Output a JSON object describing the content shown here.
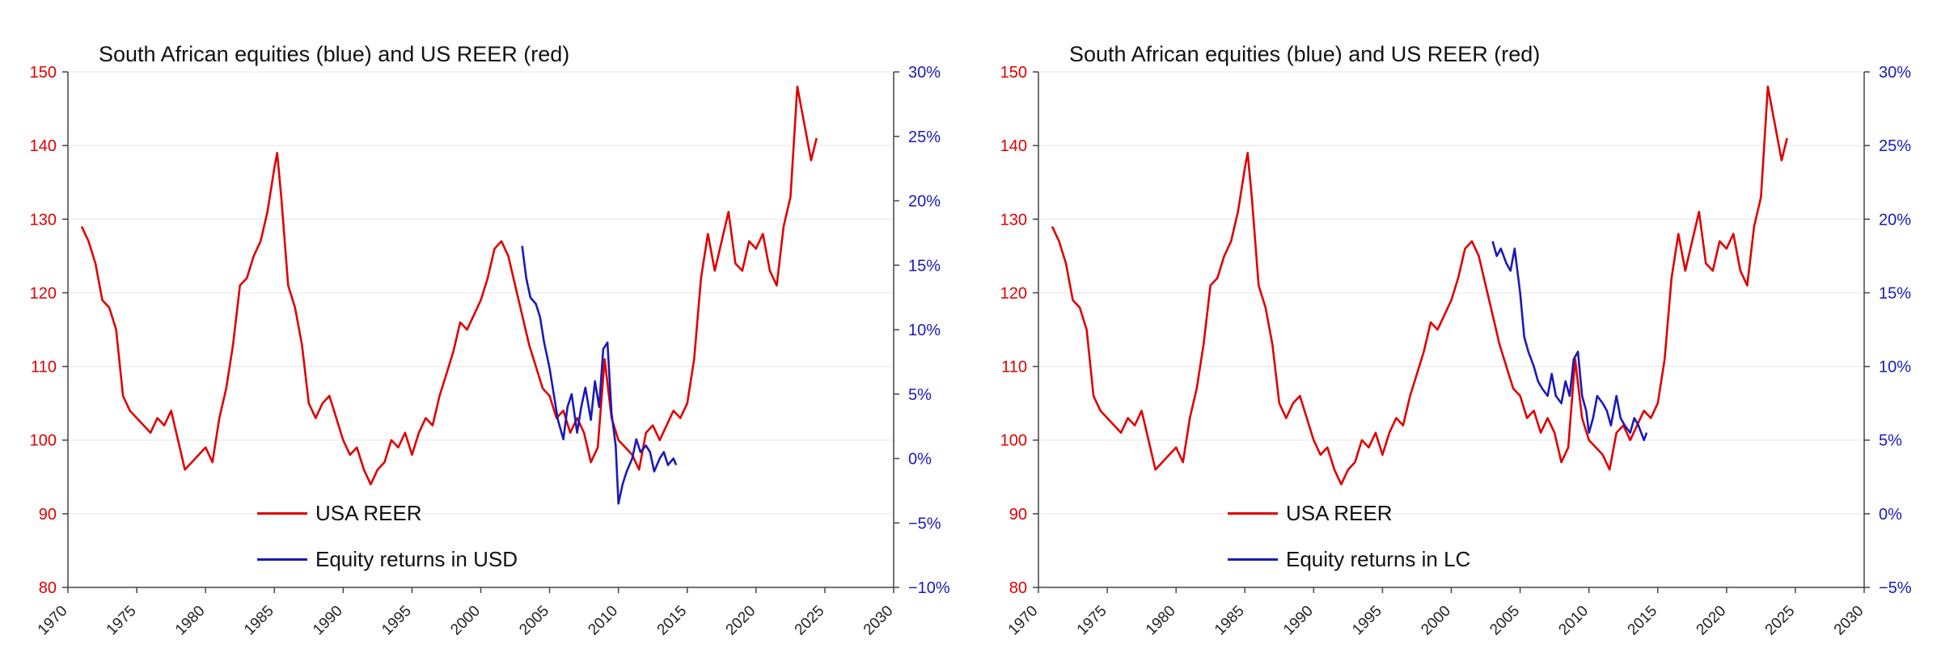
{
  "colors": {
    "reer": "#e00000",
    "equity": "#1a1ab8",
    "axis": "#444444",
    "grid": "#e6e6e6"
  },
  "chart_data": [
    {
      "type": "line",
      "title": "South African equities (blue) and US REER (red)",
      "xlim": [
        1970,
        2030
      ],
      "x_ticks": [
        "1970",
        "1975",
        "1980",
        "1985",
        "1990",
        "1995",
        "2000",
        "2005",
        "2010",
        "2015",
        "2020",
        "2025",
        "2030"
      ],
      "y_left": {
        "range": [
          80,
          150
        ],
        "ticks": [
          "80",
          "90",
          "100",
          "110",
          "120",
          "130",
          "140",
          "150"
        ]
      },
      "y_right": {
        "range": [
          -10,
          30
        ],
        "ticks": [
          "−10%",
          "−5%",
          "0%",
          "5%",
          "10%",
          "15%",
          "20%",
          "25%",
          "30%"
        ]
      },
      "grid": true,
      "legend_placement": "bottom-center",
      "series": [
        {
          "name": "USA REER",
          "axis": "left",
          "x": [
            1971.0,
            1971.5,
            1972.0,
            1972.5,
            1973.0,
            1973.5,
            1974.0,
            1974.5,
            1975.0,
            1975.5,
            1976.0,
            1976.5,
            1977.0,
            1977.5,
            1978.0,
            1978.5,
            1979.0,
            1979.5,
            1980.0,
            1980.5,
            1981.0,
            1981.5,
            1982.0,
            1982.5,
            1983.0,
            1983.5,
            1984.0,
            1984.5,
            1985.0,
            1985.2,
            1985.5,
            1986.0,
            1986.5,
            1987.0,
            1987.5,
            1988.0,
            1988.5,
            1989.0,
            1989.5,
            1990.0,
            1990.5,
            1991.0,
            1991.5,
            1992.0,
            1992.5,
            1993.0,
            1993.5,
            1994.0,
            1994.5,
            1995.0,
            1995.5,
            1996.0,
            1996.5,
            1997.0,
            1997.5,
            1998.0,
            1998.5,
            1999.0,
            1999.5,
            2000.0,
            2000.5,
            2001.0,
            2001.5,
            2002.0,
            2002.5,
            2003.0,
            2003.5,
            2004.0,
            2004.5,
            2005.0,
            2005.5,
            2006.0,
            2006.5,
            2007.0,
            2007.5,
            2008.0,
            2008.5,
            2009.0,
            2009.5,
            2010.0,
            2010.5,
            2011.0,
            2011.5,
            2012.0,
            2012.5,
            2013.0,
            2013.5,
            2014.0,
            2014.5,
            2015.0,
            2015.5,
            2016.0,
            2016.5,
            2017.0,
            2017.5,
            2018.0,
            2018.5,
            2019.0,
            2019.5,
            2020.0,
            2020.5,
            2021.0,
            2021.5,
            2022.0,
            2022.5,
            2022.8,
            2023.0,
            2023.5,
            2024.0,
            2024.4
          ],
          "y": [
            129,
            127,
            124,
            119,
            118,
            115,
            106,
            104,
            103,
            102,
            101,
            103,
            102,
            104,
            100,
            96,
            97,
            98,
            99,
            97,
            103,
            107,
            113,
            121,
            122,
            125,
            127,
            131,
            137,
            139,
            133,
            121,
            118,
            113,
            105,
            103,
            105,
            106,
            103,
            100,
            98,
            99,
            96,
            94,
            96,
            97,
            100,
            99,
            101,
            98,
            101,
            103,
            102,
            106,
            109,
            112,
            116,
            115,
            117,
            119,
            122,
            126,
            127,
            125,
            121,
            117,
            113,
            110,
            107,
            106,
            103,
            104,
            101,
            103,
            101,
            97,
            99,
            111,
            103,
            100,
            99,
            98,
            96,
            101,
            102,
            100,
            102,
            104,
            103,
            105,
            111,
            122,
            128,
            123,
            127,
            131,
            124,
            123,
            127,
            126,
            128,
            123,
            121,
            129,
            133,
            142,
            148,
            143,
            138,
            141
          ]
        }
      ]
    },
    {
      "type": "line",
      "title": "South African equities (blue) and US REER (red)",
      "xlim": [
        1970,
        2030
      ],
      "x_ticks": [
        "1970",
        "1975",
        "1980",
        "1985",
        "1990",
        "1995",
        "2000",
        "2005",
        "2010",
        "2015",
        "2020",
        "2025",
        "2030"
      ],
      "y_left": {
        "range": [
          80,
          150
        ],
        "ticks": [
          "80",
          "90",
          "100",
          "110",
          "120",
          "130",
          "140",
          "150"
        ]
      },
      "y_right": {
        "range": [
          -5,
          30
        ],
        "ticks": [
          "−5%",
          "0%",
          "5%",
          "10%",
          "15%",
          "20%",
          "25%",
          "30%"
        ]
      },
      "grid": true,
      "legend_placement": "bottom-center",
      "series": [
        {
          "name": "USA REER",
          "axis": "left",
          "x": [
            1971.0,
            1971.5,
            1972.0,
            1972.5,
            1973.0,
            1973.5,
            1974.0,
            1974.5,
            1975.0,
            1975.5,
            1976.0,
            1976.5,
            1977.0,
            1977.5,
            1978.0,
            1978.5,
            1979.0,
            1979.5,
            1980.0,
            1980.5,
            1981.0,
            1981.5,
            1982.0,
            1982.5,
            1983.0,
            1983.5,
            1984.0,
            1984.5,
            1985.0,
            1985.2,
            1985.5,
            1986.0,
            1986.5,
            1987.0,
            1987.5,
            1988.0,
            1988.5,
            1989.0,
            1989.5,
            1990.0,
            1990.5,
            1991.0,
            1991.5,
            1992.0,
            1992.5,
            1993.0,
            1993.5,
            1994.0,
            1994.5,
            1995.0,
            1995.5,
            1996.0,
            1996.5,
            1997.0,
            1997.5,
            1998.0,
            1998.5,
            1999.0,
            1999.5,
            2000.0,
            2000.5,
            2001.0,
            2001.5,
            2002.0,
            2002.5,
            2003.0,
            2003.5,
            2004.0,
            2004.5,
            2005.0,
            2005.5,
            2006.0,
            2006.5,
            2007.0,
            2007.5,
            2008.0,
            2008.5,
            2009.0,
            2009.5,
            2010.0,
            2010.5,
            2011.0,
            2011.5,
            2012.0,
            2012.5,
            2013.0,
            2013.5,
            2014.0,
            2014.5,
            2015.0,
            2015.5,
            2016.0,
            2016.5,
            2017.0,
            2017.5,
            2018.0,
            2018.5,
            2019.0,
            2019.5,
            2020.0,
            2020.5,
            2021.0,
            2021.5,
            2022.0,
            2022.5,
            2022.8,
            2023.0,
            2023.5,
            2024.0,
            2024.4
          ],
          "y": [
            129,
            127,
            124,
            119,
            118,
            115,
            106,
            104,
            103,
            102,
            101,
            103,
            102,
            104,
            100,
            96,
            97,
            98,
            99,
            97,
            103,
            107,
            113,
            121,
            122,
            125,
            127,
            131,
            137,
            139,
            133,
            121,
            118,
            113,
            105,
            103,
            105,
            106,
            103,
            100,
            98,
            99,
            96,
            94,
            96,
            97,
            100,
            99,
            101,
            98,
            101,
            103,
            102,
            106,
            109,
            112,
            116,
            115,
            117,
            119,
            122,
            126,
            127,
            125,
            121,
            117,
            113,
            110,
            107,
            106,
            103,
            104,
            101,
            103,
            101,
            97,
            99,
            111,
            103,
            100,
            99,
            98,
            96,
            101,
            102,
            100,
            102,
            104,
            103,
            105,
            111,
            122,
            128,
            123,
            127,
            131,
            124,
            123,
            127,
            126,
            128,
            123,
            121,
            129,
            133,
            142,
            148,
            143,
            138,
            141
          ]
        }
      ]
    }
  ],
  "panels": [
    {
      "title": "South African equities (blue) and US REER (red)",
      "legend_reer": "USA REER",
      "legend_equity": "Equity returns in USD"
    },
    {
      "title": "South African equities (blue) and US REER (red)",
      "legend_reer": "USA REER",
      "legend_equity": "Equity returns in LC"
    }
  ],
  "equity_series": [
    {
      "name": "Equity returns in USD",
      "axis": "right",
      "x": [
        2003.0,
        2003.3,
        2003.6,
        2004.0,
        2004.3,
        2004.6,
        2005.0,
        2005.3,
        2005.6,
        2006.0,
        2006.3,
        2006.6,
        2007.0,
        2007.3,
        2007.6,
        2008.0,
        2008.3,
        2008.6,
        2008.9,
        2009.2,
        2009.5,
        2009.8,
        2010.0,
        2010.3,
        2010.6,
        2011.0,
        2011.3,
        2011.6,
        2012.0,
        2012.3,
        2012.6,
        2013.0,
        2013.3,
        2013.6,
        2014.0,
        2014.2
      ],
      "y": [
        16.5,
        14.0,
        12.5,
        12.0,
        11.0,
        9.0,
        7.0,
        5.0,
        3.0,
        1.5,
        4.0,
        5.0,
        2.0,
        4.0,
        5.5,
        3.0,
        6.0,
        4.0,
        8.5,
        9.0,
        3.5,
        1.0,
        -3.5,
        -2.0,
        -1.0,
        0.0,
        1.5,
        0.5,
        1.0,
        0.5,
        -1.0,
        0.0,
        0.5,
        -0.5,
        0.0,
        -0.5
      ]
    },
    {
      "name": "Equity returns in LC",
      "axis": "right",
      "x": [
        2003.0,
        2003.3,
        2003.6,
        2004.0,
        2004.3,
        2004.6,
        2005.0,
        2005.3,
        2005.6,
        2006.0,
        2006.3,
        2006.6,
        2007.0,
        2007.3,
        2007.6,
        2008.0,
        2008.3,
        2008.6,
        2008.9,
        2009.2,
        2009.5,
        2009.8,
        2010.0,
        2010.3,
        2010.6,
        2011.0,
        2011.3,
        2011.6,
        2012.0,
        2012.3,
        2012.6,
        2013.0,
        2013.3,
        2013.6,
        2014.0,
        2014.2
      ],
      "y": [
        18.5,
        17.5,
        18.0,
        17.0,
        16.5,
        18.0,
        15.0,
        12.0,
        11.0,
        10.0,
        9.0,
        8.5,
        8.0,
        9.5,
        8.0,
        7.5,
        9.0,
        8.0,
        10.5,
        11.0,
        8.0,
        7.0,
        5.5,
        6.5,
        8.0,
        7.5,
        7.0,
        6.0,
        8.0,
        6.5,
        6.0,
        5.5,
        6.5,
        6.0,
        5.0,
        5.5
      ]
    }
  ]
}
